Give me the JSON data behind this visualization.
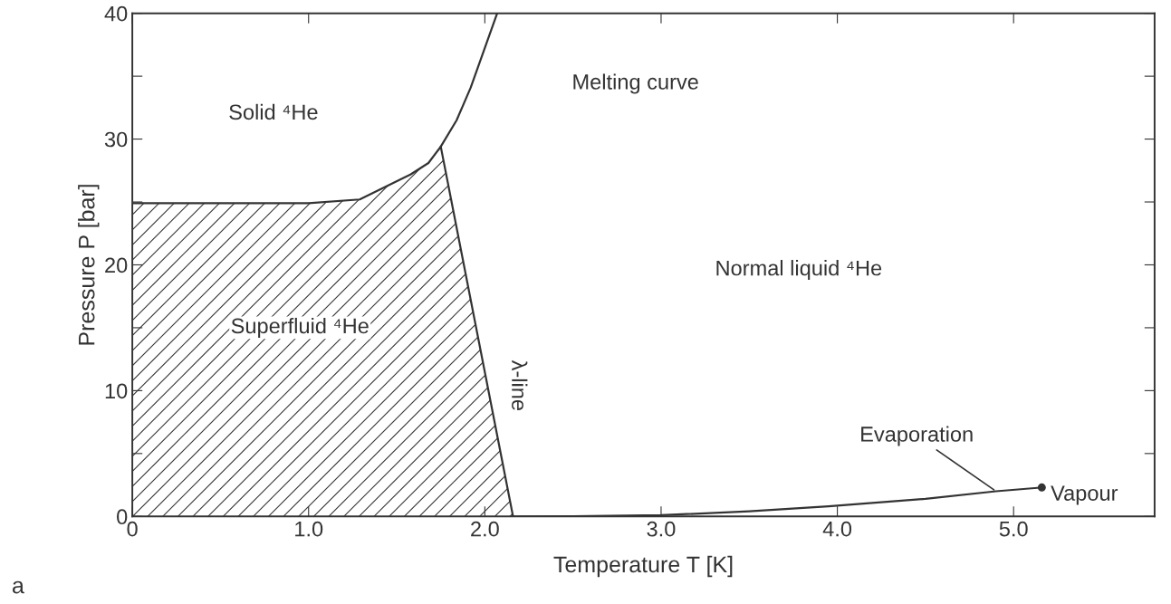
{
  "chart_data": {
    "type": "line",
    "xlabel": "Temperature T [K]",
    "ylabel": "Pressure P [bar]",
    "xlim": [
      0,
      5.8
    ],
    "ylim": [
      0,
      40
    ],
    "xticks": [
      0,
      {
        "value": 1,
        "label": "1.0"
      },
      {
        "value": 2,
        "label": "2.0"
      },
      {
        "value": 3,
        "label": "3.0"
      },
      {
        "value": 4,
        "label": "4.0"
      },
      {
        "value": 5,
        "label": "5.0"
      }
    ],
    "yticks": [
      0,
      {
        "value": 5,
        "label": null
      },
      10,
      {
        "value": 15,
        "label": null
      },
      20,
      {
        "value": 25,
        "label": null
      },
      30,
      {
        "value": 35,
        "label": null
      },
      40
    ],
    "grid": false,
    "series": [
      {
        "type": "area",
        "color": "#333333",
        "x": [
          0,
          0.5,
          1.0,
          1.29,
          1.58,
          1.68,
          1.75,
          2.16
        ],
        "values": [
          24.9,
          24.9,
          24.9,
          25.2,
          27.2,
          28.1,
          29.4,
          0
        ]
      },
      {
        "color": "#333333",
        "x": [
          1.75,
          1.84,
          1.92,
          2.07
        ],
        "values": [
          29.4,
          31.5,
          34.1,
          40
        ]
      },
      {
        "color": "#333333",
        "x": [
          2.16,
          2.5,
          3.0,
          3.5,
          3.95,
          4.5,
          4.9,
          5.16
        ],
        "values": [
          0,
          0.02,
          0.1,
          0.4,
          0.8,
          1.4,
          2.0,
          2.3
        ]
      },
      {
        "type": "scatter",
        "color": "#333333",
        "marker": "circle",
        "x": [
          5.16
        ],
        "values": [
          2.3
        ]
      }
    ],
    "annotations": [
      "Solid ⁴He",
      "Melting curve",
      "Superfluid ⁴He",
      "Normal liquid ⁴He",
      "λ-line",
      {
        "text": "Evaporation",
        "x": 4.9,
        "y": 2.0
      },
      {
        "text": "Vapour",
        "x": 5.16,
        "y": 2.3
      },
      "a"
    ]
  }
}
